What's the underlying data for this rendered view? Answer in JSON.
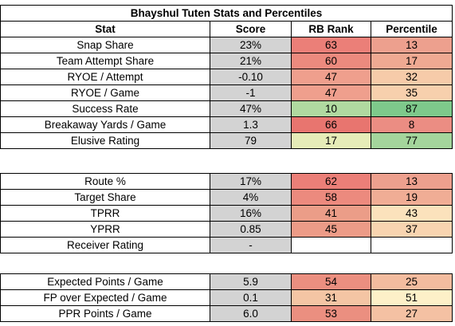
{
  "title": "Bhayshul Tuten Stats and Percentiles",
  "headers": [
    "Stat",
    "Score",
    "RB Rank",
    "Percentile"
  ],
  "sections": [
    {
      "rows": [
        {
          "stat": "Snap Share",
          "score": "23%",
          "rank": "63",
          "pct": "13",
          "rank_color": "#eb7f78",
          "pct_color": "#eda08e"
        },
        {
          "stat": "Team Attempt Share",
          "score": "21%",
          "rank": "60",
          "pct": "17",
          "rank_color": "#ec8a7e",
          "pct_color": "#efa992"
        },
        {
          "stat": "RYOE / Attempt",
          "score": "-0.10",
          "rank": "47",
          "pct": "32",
          "rank_color": "#ef9f8d",
          "pct_color": "#f6cba9"
        },
        {
          "stat": "RYOE / Game",
          "score": "-1",
          "rank": "47",
          "pct": "35",
          "rank_color": "#ef9f8d",
          "pct_color": "#f7d0ad"
        },
        {
          "stat": "Success Rate",
          "score": "47%",
          "rank": "10",
          "pct": "87",
          "rank_color": "#b0d9a0",
          "pct_color": "#7ec98b"
        },
        {
          "stat": "Breakaway Yards / Game",
          "score": "1.3",
          "rank": "66",
          "pct": "8",
          "rank_color": "#e8756f",
          "pct_color": "#eb8d83"
        },
        {
          "stat": "Elusive Rating",
          "score": "79",
          "rank": "17",
          "pct": "77",
          "rank_color": "#e6ecb8",
          "pct_color": "#a4d59c"
        }
      ]
    },
    {
      "rows": [
        {
          "stat": "Route %",
          "score": "17%",
          "rank": "62",
          "pct": "13",
          "rank_color": "#eb7f78",
          "pct_color": "#eda08e"
        },
        {
          "stat": "Target Share",
          "score": "4%",
          "rank": "58",
          "pct": "19",
          "rank_color": "#ec8a7e",
          "pct_color": "#f0ad95"
        },
        {
          "stat": "TPRR",
          "score": "16%",
          "rank": "41",
          "pct": "43",
          "rank_color": "#eb9d88",
          "pct_color": "#fbe2bc"
        },
        {
          "stat": "YPRR",
          "score": "0.85",
          "rank": "45",
          "pct": "37",
          "rank_color": "#ec9b87",
          "pct_color": "#f8d4b0"
        },
        {
          "stat": "Receiver Rating",
          "score": "-",
          "rank": "",
          "pct": "",
          "rank_color": "#ffffff",
          "pct_color": "#ffffff"
        }
      ]
    },
    {
      "rows": [
        {
          "stat": "Expected Points / Game",
          "score": "5.9",
          "rank": "54",
          "pct": "25",
          "rank_color": "#eb8f80",
          "pct_color": "#f3bc9f"
        },
        {
          "stat": "FP over Expected / Game",
          "score": "0.1",
          "rank": "31",
          "pct": "51",
          "rank_color": "#f4c5a4",
          "pct_color": "#fdf0c8"
        },
        {
          "stat": "PPR Points / Game",
          "score": "6.0",
          "rank": "53",
          "pct": "27",
          "rank_color": "#eb8f80",
          "pct_color": "#f4c1a3"
        }
      ]
    }
  ]
}
